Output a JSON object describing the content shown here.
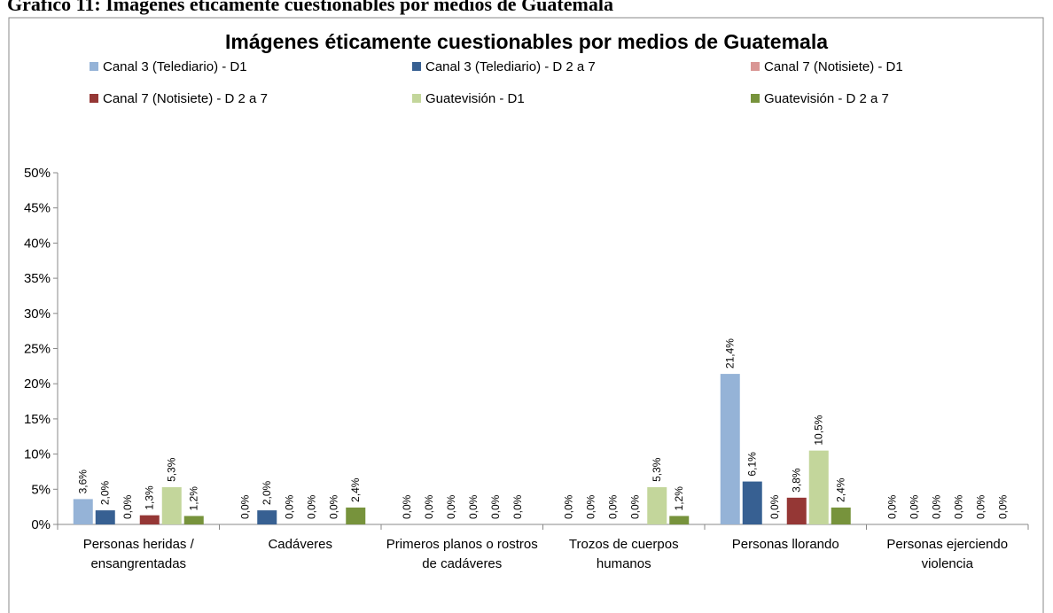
{
  "caption": "Gráfico 11: Imágenes éticamente cuestionables por medios de Guatemala",
  "chart_data": {
    "type": "bar",
    "title": "Imágenes éticamente cuestionables por medios de Guatemala",
    "categories": [
      "Personas heridas / ensangrentadas",
      "Cadáveres",
      "Primeros planos o rostros de cadáveres",
      "Trozos de cuerpos humanos",
      "Personas llorando",
      "Personas ejerciendo violencia"
    ],
    "series": [
      {
        "name": "Canal 3 (Telediario) - D1",
        "color": "#95b3d7",
        "values": [
          3.6,
          0,
          0,
          0,
          21.4,
          0
        ],
        "value_labels": [
          "3,6%",
          "0,0%",
          "0,0%",
          "0,0%",
          "21,4%",
          "0,0%"
        ]
      },
      {
        "name": "Canal 3 (Telediario) - D 2 a 7",
        "color": "#376092",
        "values": [
          2.0,
          2.0,
          0,
          0,
          6.1,
          0
        ],
        "value_labels": [
          "2,0%",
          "2,0%",
          "0,0%",
          "0,0%",
          "6,1%",
          "0,0%"
        ]
      },
      {
        "name": "Canal 7 (Notisiete) - D1",
        "color": "#d99694",
        "values": [
          0,
          0,
          0,
          0,
          0,
          0
        ],
        "value_labels": [
          "0,0%",
          "0,0%",
          "0,0%",
          "0,0%",
          "0,0%",
          "0,0%"
        ]
      },
      {
        "name": "Canal 7 (Notisiete) - D 2 a 7",
        "color": "#953735",
        "values": [
          1.3,
          0,
          0,
          0,
          3.8,
          0
        ],
        "value_labels": [
          "1,3%",
          "0,0%",
          "0,0%",
          "0,0%",
          "3,8%",
          "0,0%"
        ]
      },
      {
        "name": "Guatevisión - D1",
        "color": "#c3d69b",
        "values": [
          5.3,
          0,
          0,
          5.3,
          10.5,
          0
        ],
        "value_labels": [
          "5,3%",
          "0,0%",
          "0,0%",
          "5,3%",
          "10,5%",
          "0,0%"
        ]
      },
      {
        "name": "Guatevisión - D 2 a 7",
        "color": "#77933c",
        "values": [
          1.2,
          2.4,
          0,
          1.2,
          2.4,
          0
        ],
        "value_labels": [
          "1,2%",
          "2,4%",
          "0,0%",
          "1,2%",
          "2,4%",
          "0,0%"
        ]
      }
    ],
    "ylim": [
      0,
      50
    ],
    "yticks": [
      {
        "value": 0,
        "label": "0%"
      },
      {
        "value": 5,
        "label": "5%"
      },
      {
        "value": 10,
        "label": "10%"
      },
      {
        "value": 15,
        "label": "15%"
      },
      {
        "value": 20,
        "label": "20%"
      },
      {
        "value": 25,
        "label": "25%"
      },
      {
        "value": 30,
        "label": "30%"
      },
      {
        "value": 35,
        "label": "35%"
      },
      {
        "value": 40,
        "label": "40%"
      },
      {
        "value": 45,
        "label": "45%"
      },
      {
        "value": 50,
        "label": "50%"
      }
    ],
    "legend": "top"
  }
}
